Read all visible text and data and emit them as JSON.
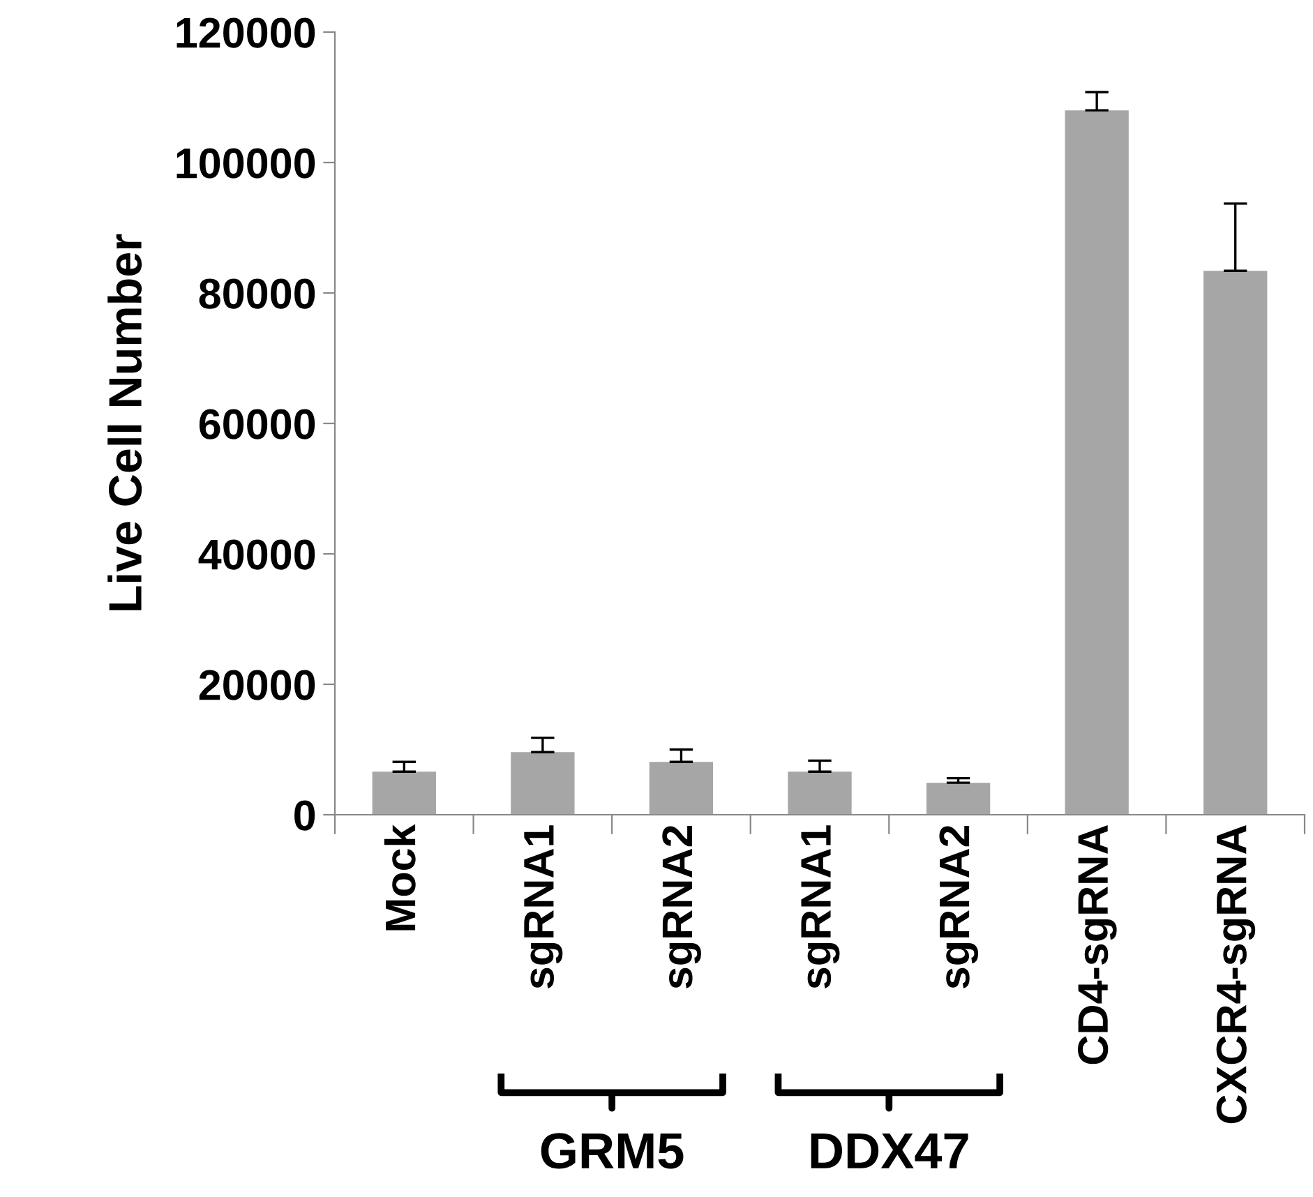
{
  "chart_data": {
    "type": "bar",
    "ylabel": "Live Cell Number",
    "categories": [
      "Mock",
      "sgRNA1",
      "sgRNA2",
      "sgRNA1",
      "sgRNA2",
      "CD4-sgRNA",
      "CXCR4-sgRNA"
    ],
    "values": [
      6600,
      9600,
      8100,
      6600,
      4900,
      108000,
      83400
    ],
    "errors": [
      [
        6600,
        8100
      ],
      [
        9600,
        11800
      ],
      [
        8100,
        10000
      ],
      [
        6600,
        8300
      ],
      [
        4900,
        5600
      ],
      [
        108000,
        110800
      ],
      [
        83400,
        93700
      ]
    ],
    "color": "#a6a6a6",
    "ylim": [
      0,
      120000
    ],
    "yticks": [
      0,
      20000,
      40000,
      60000,
      80000,
      100000,
      120000
    ],
    "grid": false,
    "legend": false,
    "annotations": [
      "GRM5",
      "DDX47"
    ]
  }
}
